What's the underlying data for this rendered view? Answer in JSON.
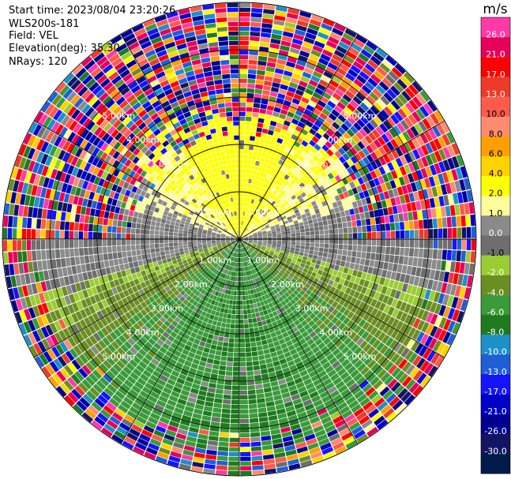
{
  "header": {
    "start_time": "Start time: 2023/08/04 23:20:26",
    "instrument": "WLS200s-181",
    "field": "Field: VEL",
    "elevation": "Elevation(deg): 35.30",
    "nrays": "NRays: 120"
  },
  "chart_data": {
    "type": "heatmap",
    "projection": "polar-ppi",
    "field": "VEL",
    "units": "m/s",
    "n_rays": 120,
    "max_range_km": 5.0,
    "range_rings_km": [
      1.0,
      2.0,
      3.0,
      4.0,
      5.0
    ],
    "ring_labels": [
      "1.00km",
      "2.00km",
      "3.00km",
      "4.00km",
      "5.00km"
    ],
    "spokes_deg": [
      0,
      30,
      60,
      90,
      120,
      150,
      180,
      210,
      240,
      270,
      300,
      330
    ],
    "velocity_pattern": {
      "north_sector_ms": 3.0,
      "south_sector_ms": -6.0,
      "coherent_range_km_north": 2.5,
      "coherent_range_km_south": 4.4,
      "beyond_noise": "random"
    },
    "colorbar": {
      "label": "m/s",
      "ticks": [
        "26.0",
        "21.0",
        "17.0",
        "13.0",
        "10.0",
        "8.0",
        "6.0",
        "4.0",
        "2.0",
        "1.0",
        "0.0",
        "-1.0",
        "-2.0",
        "-4.0",
        "-6.0",
        "-8.0",
        "-10.0",
        "-13.0",
        "-17.0",
        "-21.0",
        "-26.0",
        "-30.0"
      ],
      "colors": [
        "#ff3aa8",
        "#e6005a",
        "#ff0000",
        "#ee3a28",
        "#ff5a4a",
        "#ff8c6e",
        "#ff9f00",
        "#ffd200",
        "#ffff00",
        "#fffc9a",
        "#8a8a8a",
        "#6e6e6e",
        "#9acd32",
        "#6b8e23",
        "#3a9a3a",
        "#1f7a1f",
        "#1e90c8",
        "#1e5fd6",
        "#1414ff",
        "#0000c8",
        "#000090",
        "#141464",
        "#001a4a"
      ]
    }
  }
}
